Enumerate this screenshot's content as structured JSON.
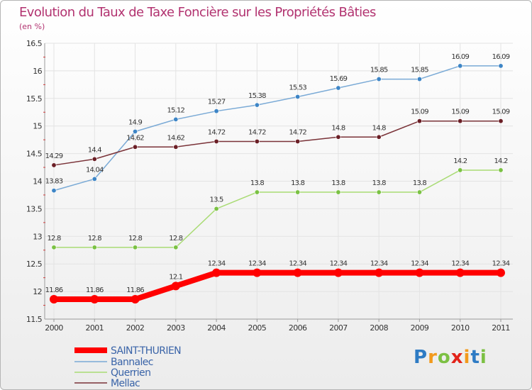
{
  "chart_data": {
    "type": "line",
    "title": "Evolution du Taux de Taxe Foncière sur les Propriétés Bâties",
    "unit_label": "(en %)",
    "x": [
      "2000",
      "2001",
      "2002",
      "2003",
      "2004",
      "2005",
      "2006",
      "2007",
      "2008",
      "2009",
      "2010",
      "2011"
    ],
    "ylim": [
      11.5,
      16.5
    ],
    "yticks": [
      "11.5",
      "12",
      "12.5",
      "13",
      "13.5",
      "14",
      "14.5",
      "15",
      "15.5",
      "16",
      "16.5"
    ],
    "grid": true,
    "legend_position": "bottom-left",
    "series": [
      {
        "name": "SAINT-THURIEN",
        "color": "#ff0000",
        "marker": "#ff0000",
        "values": [
          11.86,
          11.86,
          11.86,
          12.1,
          12.34,
          12.34,
          12.34,
          12.34,
          12.34,
          12.34,
          12.34,
          12.34
        ],
        "labels": [
          "11.86",
          "11.86",
          "11.86",
          "12.1",
          "12.34",
          "12.34",
          "12.34",
          "12.34",
          "12.34",
          "12.34",
          "12.34",
          "12.34"
        ]
      },
      {
        "name": "Bannalec",
        "color": "#7aaad6",
        "marker": "#3d85c6",
        "values": [
          13.83,
          14.04,
          14.9,
          15.12,
          15.27,
          15.38,
          15.53,
          15.69,
          15.85,
          15.85,
          16.09,
          16.09
        ],
        "labels": [
          "13.83",
          "14.04",
          "14.9",
          "15.12",
          "15.27",
          "15.38",
          "15.53",
          "15.69",
          "15.85",
          "15.85",
          "16.09",
          "16.09"
        ]
      },
      {
        "name": "Querrien",
        "color": "#a9db74",
        "marker": "#7ac143",
        "values": [
          12.8,
          12.8,
          12.8,
          12.8,
          13.5,
          13.8,
          13.8,
          13.8,
          13.8,
          13.8,
          14.2,
          14.2
        ],
        "labels": [
          "12.8",
          "12.8",
          "12.8",
          "12.8",
          "13.5",
          "13.8",
          "13.8",
          "13.8",
          "13.8",
          "13.8",
          "14.2",
          "14.2"
        ]
      },
      {
        "name": "Mellac",
        "color": "#7a3238",
        "marker": "#6b1f26",
        "values": [
          14.29,
          14.4,
          14.62,
          14.62,
          14.72,
          14.72,
          14.72,
          14.8,
          14.8,
          15.09,
          15.09,
          15.09
        ],
        "labels": [
          "14.29",
          "14.4",
          "14.62",
          "14.62",
          "14.72",
          "14.72",
          "14.72",
          "14.8",
          "14.8",
          "15.09",
          "15.09",
          "15.09"
        ]
      }
    ]
  },
  "logo": {
    "letters": [
      "P",
      "r",
      "o",
      "x",
      "i",
      "t",
      "i"
    ],
    "colors": [
      "#2e7bc4",
      "#f29a1d",
      "#7cc043",
      "#e2231a",
      "#f29a1d",
      "#2e7bc4",
      "#7cc043"
    ]
  }
}
